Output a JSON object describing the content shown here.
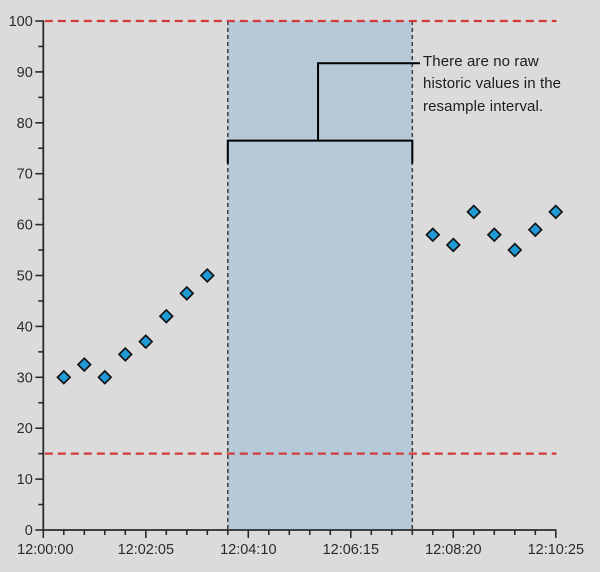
{
  "chart_data": {
    "type": "scatter",
    "title": "",
    "x_axis": {
      "start": "12:00:00",
      "end": "12:10:25",
      "major_ticks": [
        "12:00:00",
        "12:02:05",
        "12:04:10",
        "12:06:15",
        "12:08:20",
        "12:10:25"
      ],
      "minor_tick_step_seconds": 25
    },
    "y_axis": {
      "min": 0,
      "max": 100,
      "major_ticks": [
        0,
        10,
        20,
        30,
        40,
        50,
        60,
        70,
        80,
        90,
        100
      ],
      "minor_tick_step": 5
    },
    "series": [
      {
        "name": "raw historic values",
        "marker": "diamond",
        "points": [
          {
            "time": "12:00:25",
            "value": 30
          },
          {
            "time": "12:00:50",
            "value": 32.5
          },
          {
            "time": "12:01:15",
            "value": 30
          },
          {
            "time": "12:01:40",
            "value": 34.5
          },
          {
            "time": "12:02:05",
            "value": 37
          },
          {
            "time": "12:02:30",
            "value": 42
          },
          {
            "time": "12:02:55",
            "value": 46.5
          },
          {
            "time": "12:03:20",
            "value": 50
          },
          {
            "time": "12:07:55",
            "value": 58
          },
          {
            "time": "12:08:20",
            "value": 56
          },
          {
            "time": "12:08:45",
            "value": 62.5
          },
          {
            "time": "12:09:10",
            "value": 58
          },
          {
            "time": "12:09:35",
            "value": 55
          },
          {
            "time": "12:10:00",
            "value": 59
          },
          {
            "time": "12:10:25",
            "value": 62.5
          }
        ]
      }
    ],
    "limit_lines": [
      {
        "value": 100
      },
      {
        "value": 15
      }
    ],
    "resample_interval": {
      "start": "12:03:45",
      "end": "12:07:30"
    },
    "annotation": {
      "text": "There are no raw historic values in the resample interval.",
      "lines": [
        "There are no raw",
        "historic values in the",
        "resample interval."
      ],
      "bracket": {
        "bar_value": 76.5,
        "tick_end_value": 72,
        "riser_top_value": 91.7
      }
    },
    "colors": {
      "background": "#dbdbdb",
      "band_fill": "#b6c9d8",
      "band_border": "#454545",
      "limit_line": "#d33b3b",
      "marker_fill": "#1f9bd7",
      "marker_stroke": "#141414",
      "axis": "#2b2b2b",
      "callout": "#000000",
      "tick_label": "#2b2b2b"
    }
  }
}
